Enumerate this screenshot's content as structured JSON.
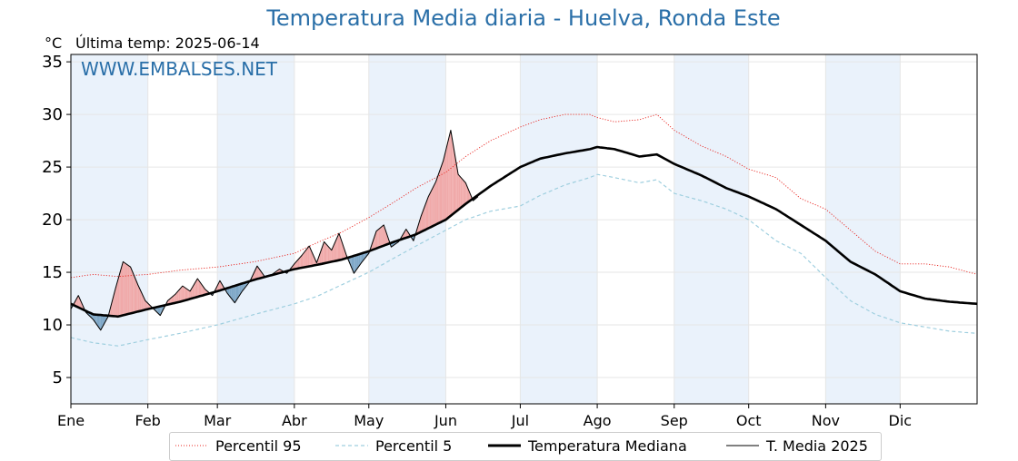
{
  "title": "Temperatura Media diaria - Huelva, Ronda Este",
  "unit_label": "°C",
  "last_temp": "Última temp: 2025-06-14",
  "watermark": "WWW.EMBALSES.NET",
  "legend": {
    "p95": "Percentil 95",
    "p5": "Percentil 5",
    "median": "Temperatura Mediana",
    "current": "T. Media 2025"
  },
  "colors": {
    "p95": "#e8241f",
    "p5": "#9fcfdf",
    "median": "#000000",
    "current": "#000000",
    "above_fill": "#f0a9a9",
    "below_fill": "#7ea7c7",
    "title": "#2a6fa8",
    "band": "#eaf2fb"
  },
  "chart_data": {
    "type": "line",
    "title": "Temperatura Media diaria - Huelva, Ronda Este",
    "ylabel": "°C",
    "ylim": [
      2.5,
      35.7
    ],
    "yticks": [
      5,
      10,
      15,
      20,
      25,
      30,
      35
    ],
    "xlim": [
      1,
      366
    ],
    "grid": true,
    "month_ticks": [
      {
        "label": "Ene",
        "day": 1
      },
      {
        "label": "Feb",
        "day": 32
      },
      {
        "label": "Mar",
        "day": 60
      },
      {
        "label": "Abr",
        "day": 91
      },
      {
        "label": "May",
        "day": 121
      },
      {
        "label": "Jun",
        "day": 152
      },
      {
        "label": "Jul",
        "day": 182
      },
      {
        "label": "Ago",
        "day": 213
      },
      {
        "label": "Sep",
        "day": 244
      },
      {
        "label": "Oct",
        "day": 274
      },
      {
        "label": "Nov",
        "day": 305
      },
      {
        "label": "Dic",
        "day": 335
      }
    ],
    "shaded_month_bands": [
      [
        1,
        32
      ],
      [
        60,
        91
      ],
      [
        121,
        152
      ],
      [
        182,
        213
      ],
      [
        244,
        274
      ],
      [
        305,
        335
      ]
    ],
    "legend_position": "bottom",
    "series": [
      {
        "name": "Percentil 95",
        "style": "dotted-red",
        "x": [
          1,
          10,
          20,
          32,
          45,
          60,
          75,
          91,
          100,
          110,
          121,
          130,
          140,
          152,
          160,
          170,
          182,
          190,
          200,
          210,
          213,
          220,
          230,
          237,
          244,
          255,
          265,
          274,
          285,
          295,
          305,
          315,
          325,
          335,
          345,
          355,
          366
        ],
        "y": [
          14.5,
          14.8,
          14.6,
          14.8,
          15.2,
          15.5,
          16.0,
          16.8,
          17.8,
          18.8,
          20.2,
          21.5,
          23.0,
          24.5,
          26.0,
          27.5,
          28.8,
          29.5,
          30.0,
          30.0,
          29.7,
          29.3,
          29.5,
          30.0,
          28.5,
          27.0,
          26.0,
          24.8,
          24.0,
          22.0,
          21.0,
          19.0,
          17.0,
          15.8,
          15.8,
          15.5,
          14.8
        ]
      },
      {
        "name": "Percentil 5",
        "style": "dashed-lightblue",
        "x": [
          1,
          10,
          20,
          32,
          45,
          60,
          75,
          91,
          100,
          110,
          121,
          130,
          140,
          152,
          160,
          170,
          182,
          190,
          200,
          210,
          213,
          220,
          230,
          237,
          244,
          255,
          265,
          274,
          285,
          295,
          305,
          315,
          325,
          335,
          345,
          355,
          366
        ],
        "y": [
          8.8,
          8.3,
          8.0,
          8.6,
          9.2,
          10.0,
          11.0,
          12.0,
          12.7,
          13.8,
          15.0,
          16.2,
          17.5,
          19.0,
          20.0,
          20.8,
          21.3,
          22.3,
          23.3,
          24.0,
          24.3,
          24.0,
          23.5,
          23.8,
          22.5,
          21.8,
          21.0,
          20.0,
          18.0,
          16.8,
          14.5,
          12.3,
          11.0,
          10.2,
          9.8,
          9.4,
          9.2
        ]
      },
      {
        "name": "Temperatura Mediana",
        "style": "solid-thick-black",
        "x": [
          1,
          10,
          20,
          32,
          45,
          60,
          75,
          91,
          100,
          110,
          121,
          130,
          140,
          152,
          160,
          170,
          182,
          190,
          200,
          210,
          213,
          220,
          230,
          237,
          244,
          255,
          265,
          274,
          285,
          295,
          305,
          315,
          325,
          335,
          345,
          355,
          366
        ],
        "y": [
          12.0,
          11.0,
          10.8,
          11.5,
          12.2,
          13.2,
          14.3,
          15.3,
          15.7,
          16.2,
          17.0,
          17.8,
          18.6,
          20.0,
          21.5,
          23.2,
          25.0,
          25.8,
          26.3,
          26.7,
          26.9,
          26.7,
          26.0,
          26.2,
          25.3,
          24.2,
          23.0,
          22.2,
          21.0,
          19.5,
          18.0,
          16.0,
          14.8,
          13.2,
          12.5,
          12.2,
          12.0
        ]
      },
      {
        "name": "T. Media 2025",
        "style": "solid-thin-black",
        "x": [
          1,
          4,
          7,
          10,
          13,
          16,
          19,
          22,
          25,
          28,
          31,
          34,
          37,
          40,
          43,
          46,
          49,
          52,
          55,
          58,
          61,
          64,
          67,
          70,
          73,
          76,
          79,
          82,
          85,
          88,
          91,
          94,
          97,
          100,
          103,
          106,
          109,
          112,
          115,
          118,
          121,
          124,
          127,
          130,
          133,
          136,
          139,
          142,
          145,
          148,
          151,
          154,
          157,
          160,
          163,
          165
        ],
        "y": [
          11.5,
          12.8,
          11.2,
          10.5,
          9.5,
          10.8,
          13.5,
          16.0,
          15.5,
          13.8,
          12.3,
          11.6,
          10.9,
          12.3,
          12.9,
          13.7,
          13.2,
          14.4,
          13.4,
          12.8,
          14.2,
          13.0,
          12.1,
          13.2,
          14.1,
          15.6,
          14.6,
          14.8,
          15.3,
          14.9,
          15.8,
          16.6,
          17.5,
          15.9,
          17.9,
          17.1,
          18.7,
          16.6,
          14.9,
          15.9,
          16.8,
          18.9,
          19.5,
          17.4,
          17.9,
          19.1,
          18.0,
          20.3,
          22.2,
          23.6,
          25.6,
          28.5,
          24.3,
          23.5,
          21.8,
          22.2
        ]
      }
    ]
  }
}
